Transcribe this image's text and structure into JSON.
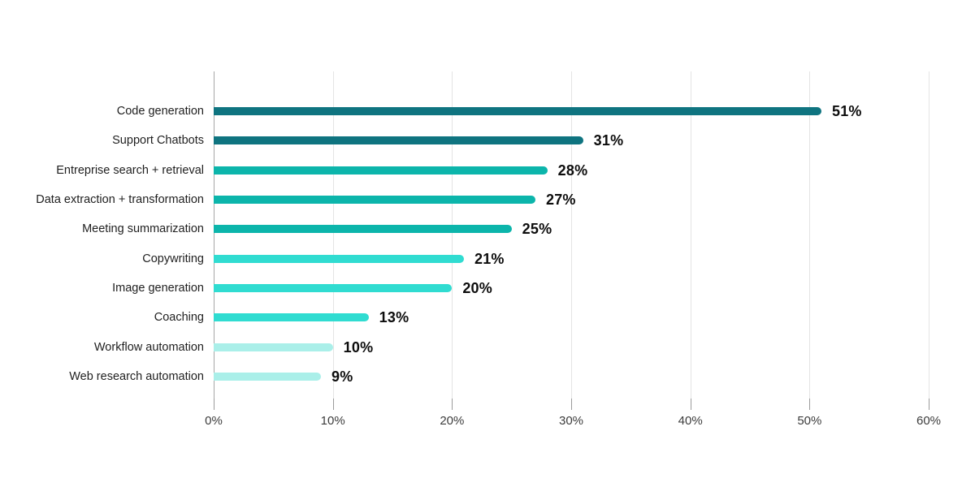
{
  "chart_data": {
    "type": "bar",
    "orientation": "horizontal",
    "title": "",
    "xlabel": "",
    "ylabel": "",
    "categories": [
      "Code generation",
      "Support Chatbots",
      "Entreprise search + retrieval",
      "Data extraction + transformation",
      "Meeting summarization",
      "Copywriting",
      "Image generation",
      "Coaching",
      "Workflow automation",
      "Web research automation"
    ],
    "values": [
      51,
      31,
      28,
      27,
      25,
      21,
      20,
      13,
      10,
      9
    ],
    "value_labels": [
      "51%",
      "31%",
      "28%",
      "27%",
      "25%",
      "21%",
      "20%",
      "13%",
      "10%",
      "9%"
    ],
    "bar_colors": [
      "#0f7480",
      "#0f7480",
      "#0cb5ab",
      "#0cb5ab",
      "#0cb5ab",
      "#30dcd1",
      "#30dcd1",
      "#30dcd1",
      "#aaefe9",
      "#aaefe9"
    ],
    "xlim": [
      0,
      60
    ],
    "x_ticks": [
      0,
      10,
      20,
      30,
      40,
      50,
      60
    ],
    "x_tick_labels": [
      "0%",
      "10%",
      "20%",
      "30%",
      "40%",
      "50%",
      "60%"
    ],
    "grid": true,
    "legend": false,
    "colors": {
      "background": "#ffffff",
      "gridline": "#e4e4e4",
      "zero_axis_line": "#a6a6a6",
      "tick_mark": "#9b9b9b",
      "value_label_text": "#0d0d0d",
      "category_label_text": "#1f1f1f",
      "axis_label_text": "#3c3c3c"
    }
  }
}
